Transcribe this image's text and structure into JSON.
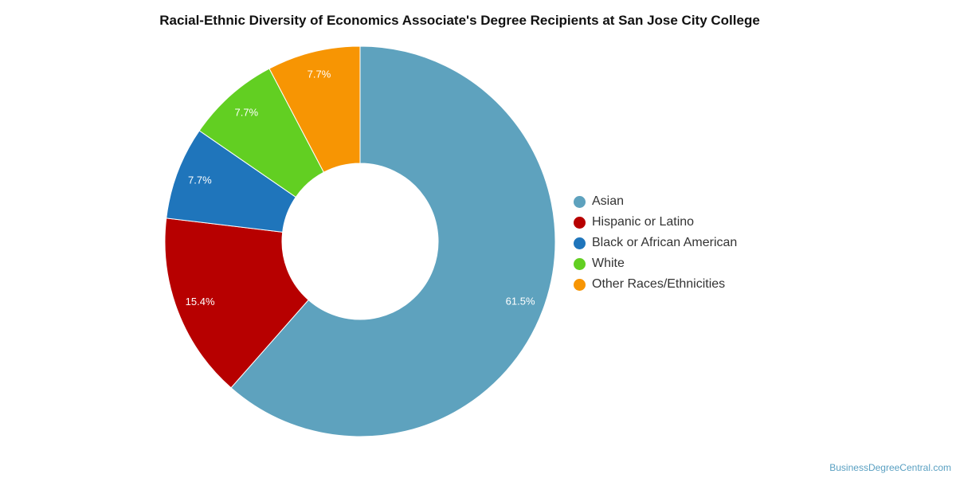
{
  "chart_data": {
    "type": "pie",
    "title": "Racial-Ethnic Diversity of Economics Associate's Degree Recipients at San Jose City College",
    "donut": true,
    "legend_position": "right",
    "slices": [
      {
        "label": "Asian",
        "value": 61.5,
        "display": "61.5%",
        "color": "#5ea2be"
      },
      {
        "label": "Hispanic or Latino",
        "value": 15.4,
        "display": "15.4%",
        "color": "#b70000"
      },
      {
        "label": "Black or African American",
        "value": 7.7,
        "display": "7.7%",
        "color": "#1f75bb"
      },
      {
        "label": "White",
        "value": 7.7,
        "display": "7.7%",
        "color": "#62cf22"
      },
      {
        "label": "Other Races/Ethnicities",
        "value": 7.7,
        "display": "7.7%",
        "color": "#f79503"
      }
    ]
  },
  "watermark": "BusinessDegreeCentral.com"
}
